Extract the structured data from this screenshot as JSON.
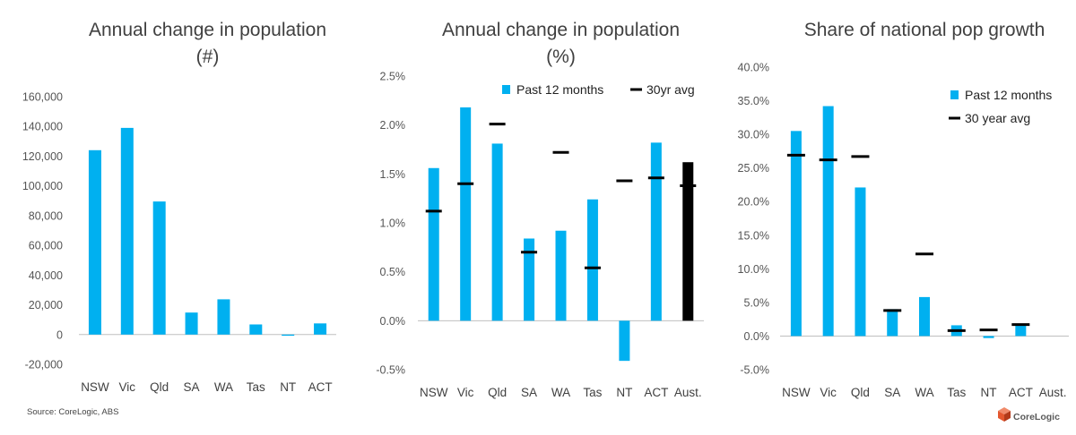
{
  "footer": {
    "source": "Source: CoreLogic, ABS"
  },
  "logo": {
    "text": "CoreLogic"
  },
  "colors": {
    "bar": "#00B0F0",
    "avg": "#000000",
    "axis": "#BFBFBF",
    "text": "#404040"
  },
  "chart_data": [
    {
      "type": "bar",
      "title": "Annual change in population",
      "subtitle": "(#)",
      "categories": [
        "NSW",
        "Vic",
        "Qld",
        "SA",
        "WA",
        "Tas",
        "NT",
        "ACT"
      ],
      "series": [
        {
          "values": [
            124000,
            139000,
            89500,
            14800,
            23700,
            6800,
            -800,
            7500
          ]
        }
      ],
      "yticks": [
        "160,000",
        "140,000",
        "120,000",
        "100,000",
        "80,000",
        "60,000",
        "40,000",
        "20,000",
        "0",
        "-20,000"
      ],
      "ylim": [
        -20000,
        160000
      ],
      "grid": false
    },
    {
      "type": "bar",
      "title": "Annual change in population",
      "subtitle": "(%)",
      "categories": [
        "NSW",
        "Vic",
        "Qld",
        "SA",
        "WA",
        "Tas",
        "NT",
        "ACT",
        "Aust."
      ],
      "series": [
        {
          "name": "Past 12 months",
          "values": [
            1.56,
            2.18,
            1.81,
            0.84,
            0.92,
            1.24,
            -0.41,
            1.82,
            1.62
          ]
        },
        {
          "name": "30yr avg",
          "values": [
            1.12,
            1.4,
            2.01,
            0.7,
            1.72,
            0.54,
            1.43,
            1.46,
            1.38
          ]
        }
      ],
      "yticks": [
        "2.5%",
        "2.0%",
        "1.5%",
        "1.0%",
        "0.5%",
        "0.0%",
        "-0.5%"
      ],
      "ylim": [
        -0.5,
        2.5
      ],
      "legend": "top-right",
      "grid": false
    },
    {
      "type": "bar",
      "title": "Share of national pop growth",
      "subtitle": "",
      "categories": [
        "NSW",
        "Vic",
        "Qld",
        "SA",
        "WA",
        "Tas",
        "NT",
        "ACT",
        "Aust."
      ],
      "series": [
        {
          "name": "Past 12 months",
          "values": [
            30.5,
            34.2,
            22.1,
            4.0,
            5.8,
            1.6,
            -0.3,
            1.6,
            0
          ]
        },
        {
          "name": "30 year avg",
          "values": [
            26.9,
            26.2,
            26.7,
            3.8,
            12.2,
            0.8,
            0.9,
            1.7,
            null
          ]
        }
      ],
      "yticks": [
        "40.0%",
        "35.0%",
        "30.0%",
        "25.0%",
        "20.0%",
        "15.0%",
        "10.0%",
        "5.0%",
        "0.0%",
        "-5.0%"
      ],
      "ylim": [
        -5,
        40
      ],
      "legend": "top-right",
      "grid": false
    }
  ]
}
